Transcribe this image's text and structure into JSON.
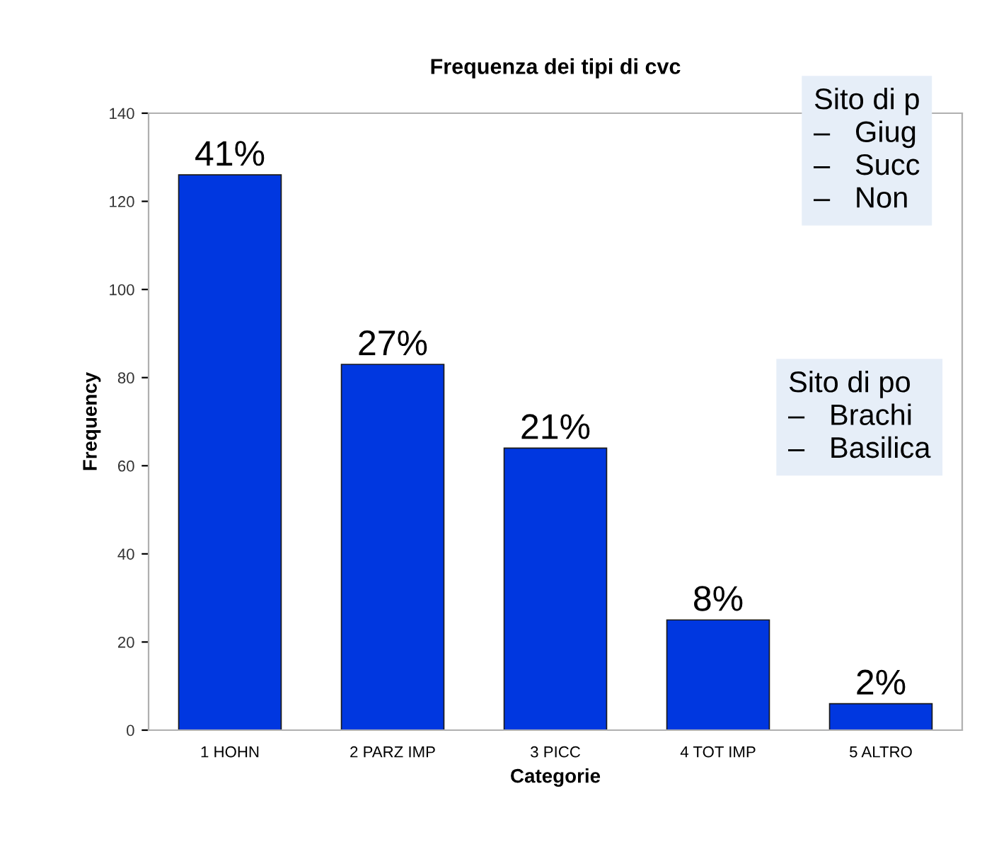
{
  "chart_data": {
    "type": "bar",
    "title": "Frequenza dei tipi di cvc",
    "xlabel": "Categorie",
    "ylabel": "Frequency",
    "categories": [
      "1 HOHN",
      "2 PARZ IMP",
      "3 PICC",
      "4 TOT IMP",
      "5 ALTRO"
    ],
    "values": [
      126,
      83,
      64,
      25,
      6
    ],
    "color": "#0037e0",
    "ylim": [
      0,
      140
    ],
    "yticks": [
      0,
      20,
      40,
      60,
      80,
      100,
      120,
      140
    ],
    "grid": false,
    "annotations": [
      {
        "text": "41%",
        "x": "1 HOHN",
        "y": 126
      },
      {
        "text": "27%",
        "x": "2 PARZ IMP",
        "y": 83
      },
      {
        "text": "21%",
        "x": "3 PICC",
        "y": 64
      },
      {
        "text": "8%",
        "x": "4 TOT IMP",
        "y": 25
      },
      {
        "text": "2%",
        "x": "5 ALTRO",
        "y": 6
      },
      "Sito di p\n–   Giug\n–   Succ\n–   Non",
      "Sito di po\n–   Brachi\n–   Basilica"
    ]
  }
}
